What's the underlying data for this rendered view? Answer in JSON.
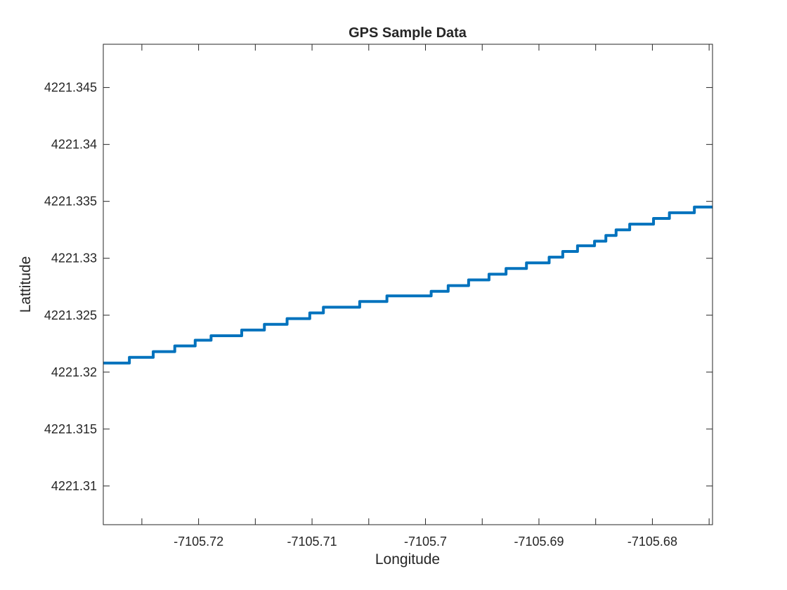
{
  "chart_data": {
    "type": "line",
    "title": "GPS Sample Data",
    "xlabel": "Longitude",
    "ylabel": "Lattitude",
    "xlim": [
      -7105.7284,
      -7105.6747
    ],
    "ylim": [
      4221.3066,
      4221.3488
    ],
    "xticks": [
      -7105.72,
      -7105.71,
      -7105.7,
      -7105.69,
      -7105.68
    ],
    "xtick_labels": [
      "-7105.72",
      "-7105.71",
      "-7105.7",
      "-7105.69",
      "-7105.68"
    ],
    "xminor_ticks": [
      -7105.725,
      -7105.715,
      -7105.705,
      -7105.695,
      -7105.685,
      -7105.675
    ],
    "yticks": [
      4221.31,
      4221.315,
      4221.32,
      4221.325,
      4221.33,
      4221.335,
      4221.34,
      4221.345
    ],
    "ytick_labels": [
      "4221.31",
      "4221.315",
      "4221.32",
      "4221.325",
      "4221.33",
      "4221.335",
      "4221.34",
      "4221.345"
    ],
    "grid": false,
    "box": true,
    "series": [
      {
        "color": "#0072BD",
        "line_style": "step",
        "x": [
          -7105.7284,
          -7105.7261,
          -7105.724,
          -7105.7221,
          -7105.7203,
          -7105.7189,
          -7105.7162,
          -7105.7142,
          -7105.7122,
          -7105.7102,
          -7105.709,
          -7105.7058,
          -7105.7034,
          -7105.6995,
          -7105.698,
          -7105.6962,
          -7105.6944,
          -7105.6929,
          -7105.6911,
          -7105.6891,
          -7105.6879,
          -7105.6866,
          -7105.6851,
          -7105.6841,
          -7105.6832,
          -7105.682,
          -7105.6799,
          -7105.6785,
          -7105.6763,
          -7105.6747
        ],
        "y": [
          4221.3208,
          4221.3213,
          4221.3218,
          4221.3223,
          4221.3228,
          4221.3232,
          4221.3237,
          4221.3242,
          4221.3247,
          4221.3252,
          4221.3257,
          4221.3262,
          4221.3267,
          4221.3271,
          4221.3276,
          4221.3281,
          4221.3286,
          4221.3291,
          4221.3296,
          4221.3301,
          4221.3306,
          4221.3311,
          4221.3315,
          4221.332,
          4221.3325,
          4221.333,
          4221.3335,
          4221.334,
          4221.3345,
          4221.3345
        ]
      }
    ]
  }
}
